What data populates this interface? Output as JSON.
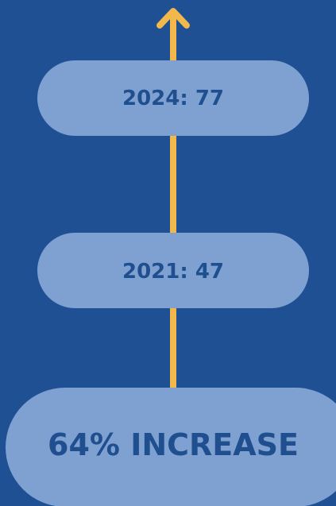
{
  "nodes": [
    {
      "label": "2024: 77"
    },
    {
      "label": "2021: 47"
    },
    {
      "label": "64% INCREASE"
    }
  ]
}
